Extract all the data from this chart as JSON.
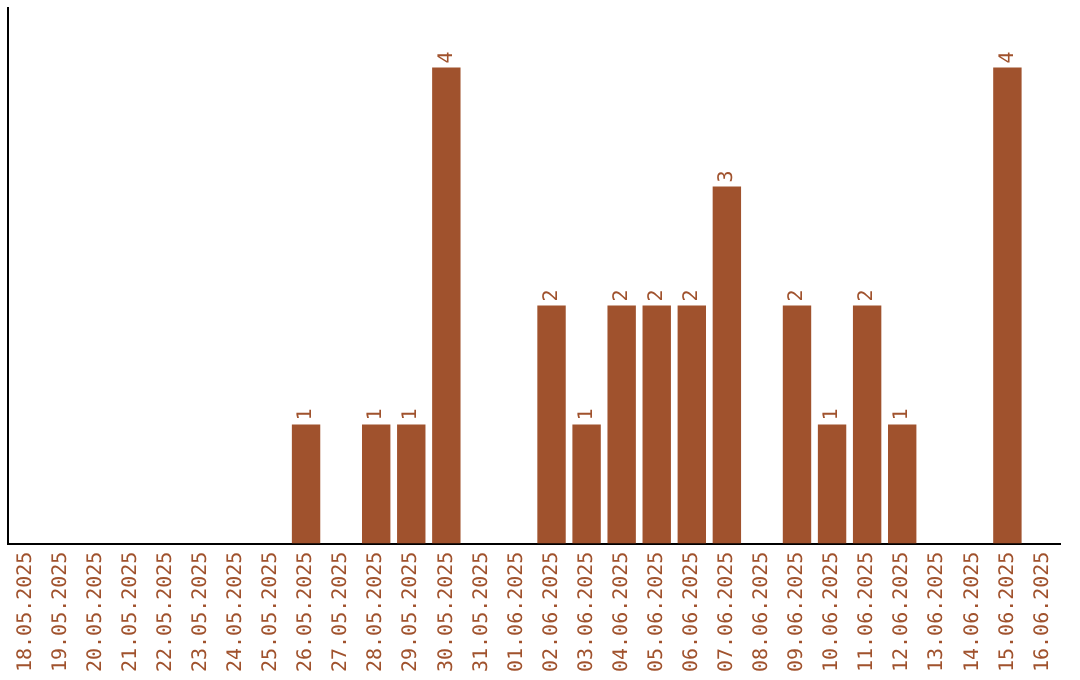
{
  "chart_data": {
    "type": "bar",
    "categories": [
      "18.05.2025",
      "19.05.2025",
      "20.05.2025",
      "21.05.2025",
      "22.05.2025",
      "23.05.2025",
      "24.05.2025",
      "25.05.2025",
      "26.05.2025",
      "27.05.2025",
      "28.05.2025",
      "29.05.2025",
      "30.05.2025",
      "31.05.2025",
      "01.06.2025",
      "02.06.2025",
      "03.06.2025",
      "04.06.2025",
      "05.06.2025",
      "06.06.2025",
      "07.06.2025",
      "08.06.2025",
      "09.06.2025",
      "10.06.2025",
      "11.06.2025",
      "12.06.2025",
      "13.06.2025",
      "14.06.2025",
      "15.06.2025",
      "16.06.2025"
    ],
    "values": [
      0,
      0,
      0,
      0,
      0,
      0,
      0,
      0,
      1,
      0,
      1,
      1,
      4,
      0,
      0,
      2,
      1,
      2,
      2,
      2,
      3,
      0,
      2,
      1,
      2,
      1,
      0,
      0,
      4,
      0
    ],
    "value_labels": [
      null,
      null,
      null,
      null,
      null,
      null,
      null,
      null,
      "1",
      null,
      "1",
      "1",
      "4",
      null,
      null,
      "2",
      "1",
      "2",
      "2",
      "2",
      "3",
      null,
      "2",
      "1",
      "2",
      "1",
      null,
      null,
      "4",
      null
    ],
    "color": "#a0522d",
    "grid": false,
    "legend": false,
    "tick_labels": "x"
  }
}
